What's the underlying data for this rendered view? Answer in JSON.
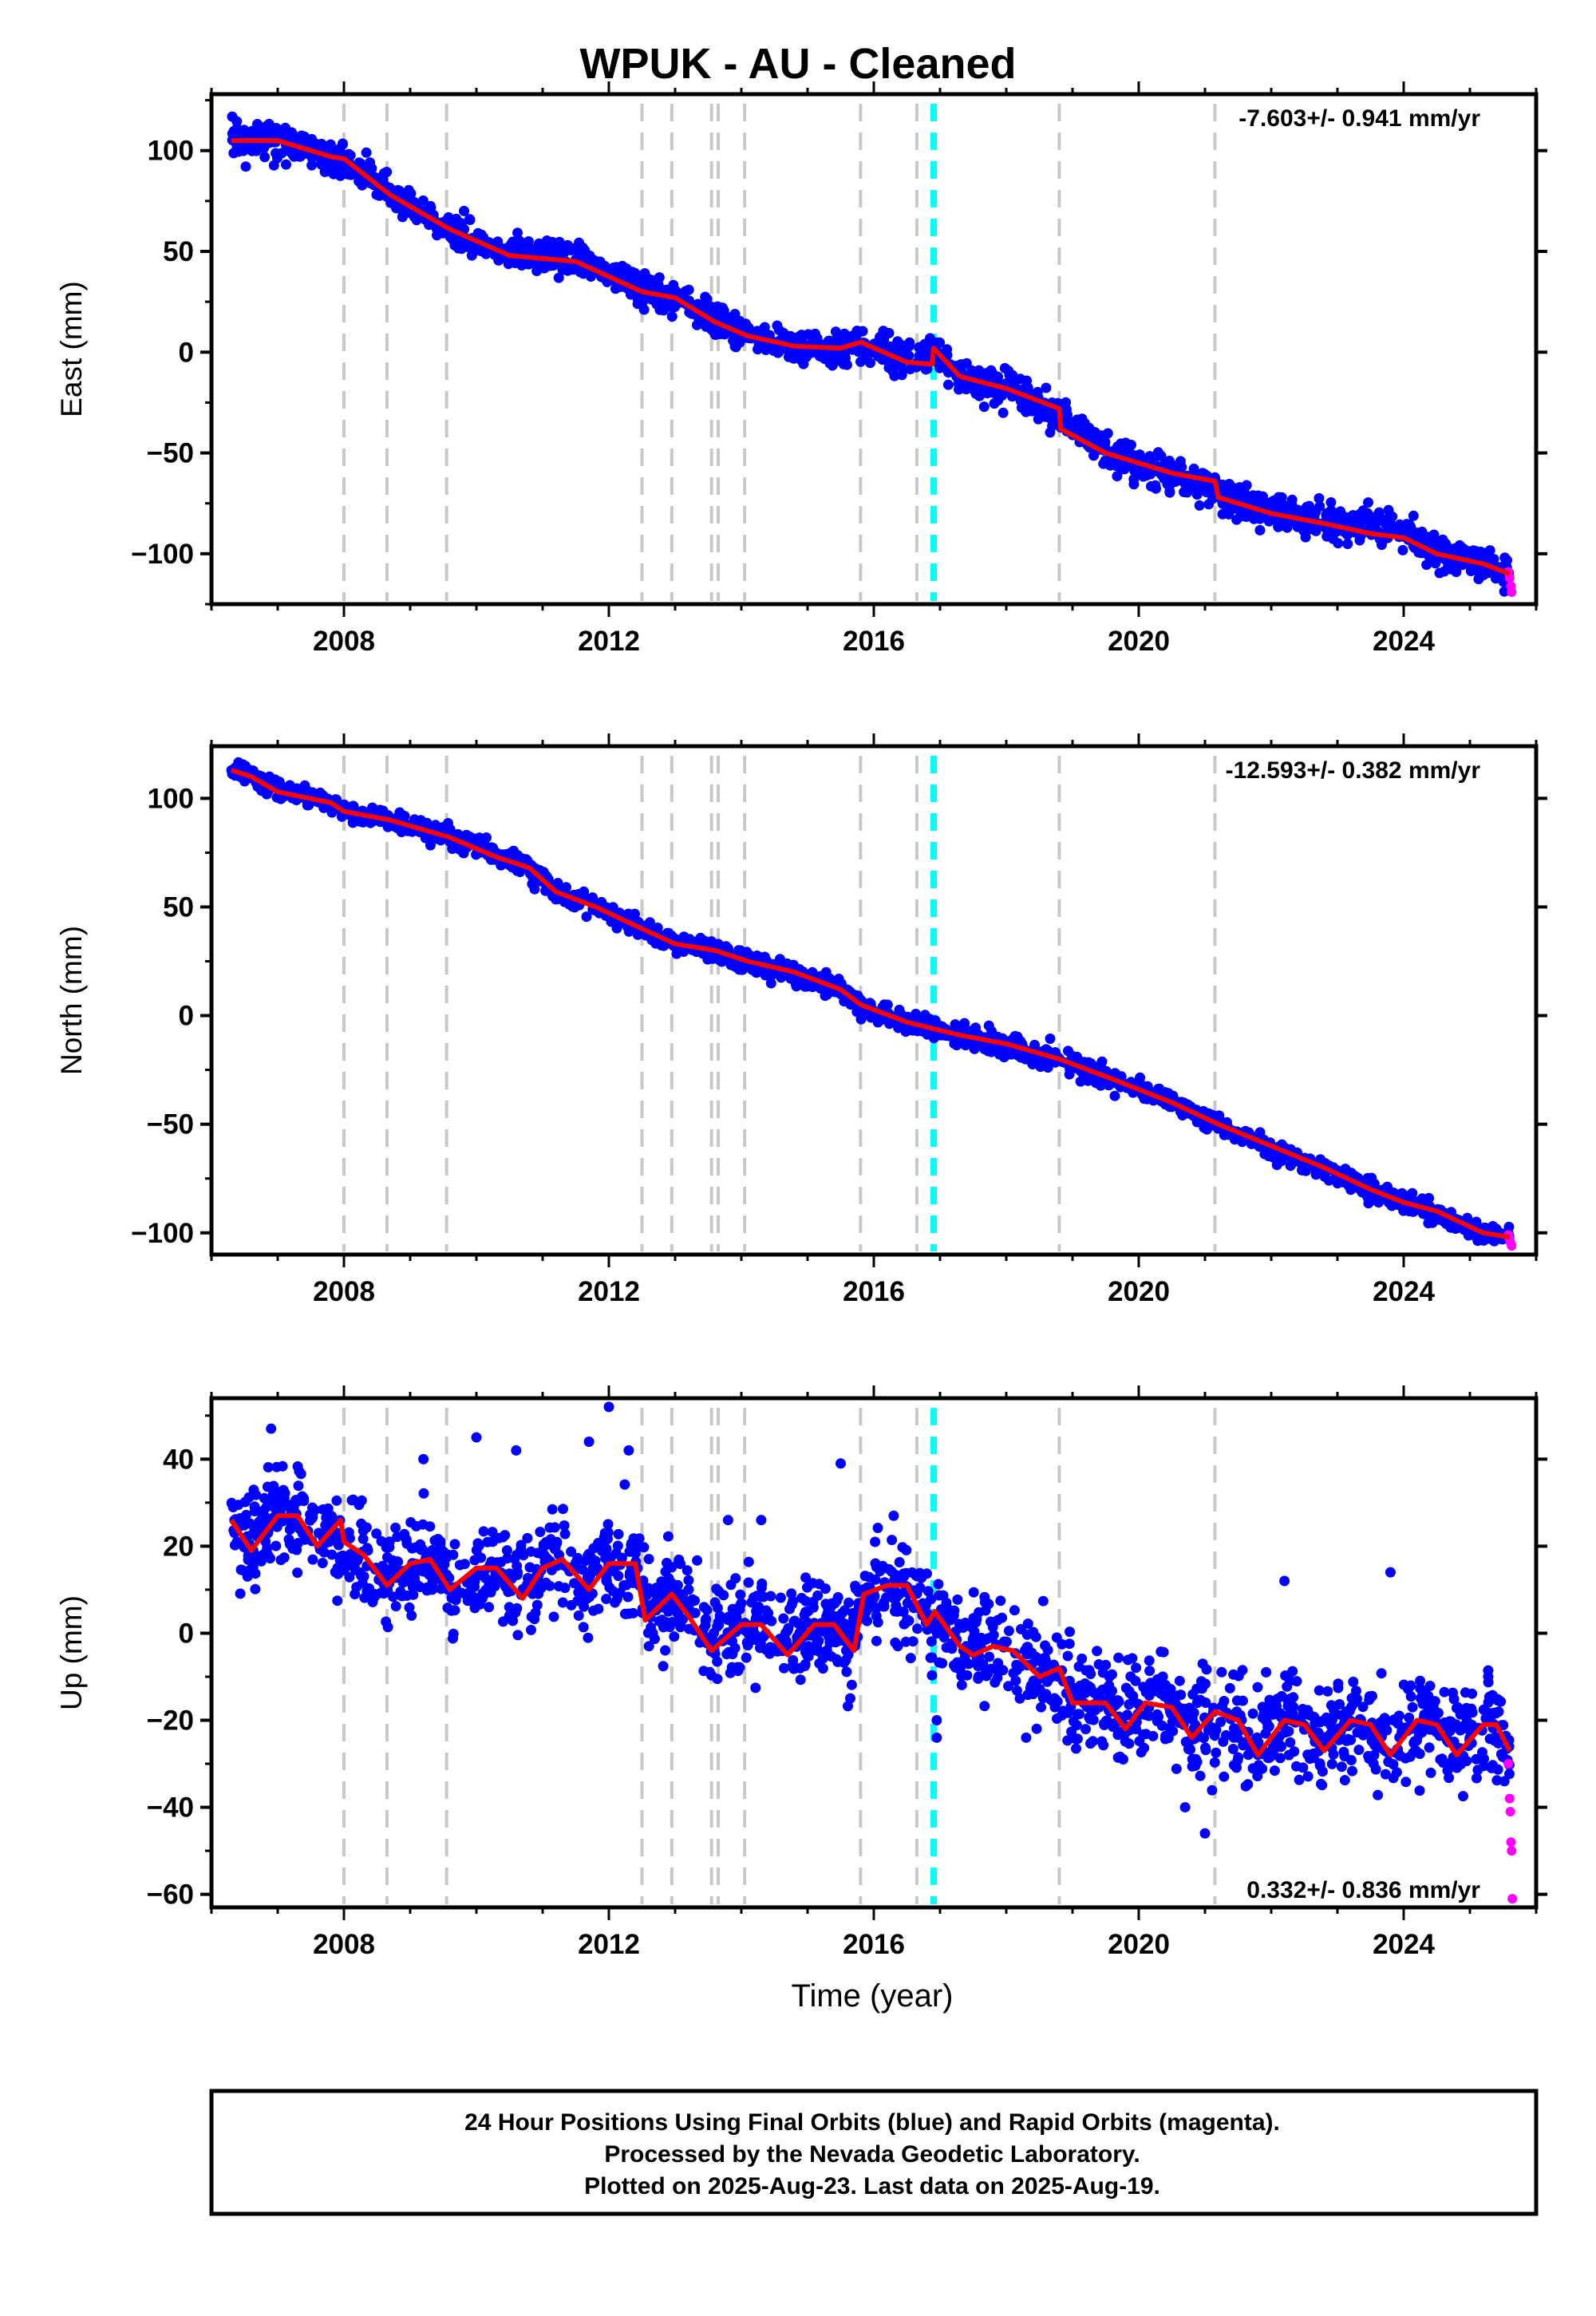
{
  "title": "WPUK  - AU - Cleaned",
  "xlabel": "Time (year)",
  "footer": [
    "24 Hour Positions Using Final Orbits (blue) and Rapid Orbits (magenta).",
    "Processed by the Nevada Geodetic Laboratory.",
    "Plotted on 2025-Aug-23. Last data on 2025-Aug-19."
  ],
  "colors": {
    "final": "#0000ff",
    "rapid": "#ff00ff",
    "model": "#ff0000",
    "steps": "#c8c8c8",
    "equipment": "#00ffff"
  },
  "chart_data": [
    {
      "type": "scatter",
      "ylabel": "East (mm)",
      "rate": "-7.603+/- 0.941 mm/yr",
      "ylim": [
        -125,
        128
      ],
      "yticks": [
        100,
        50,
        0,
        -50,
        -100
      ],
      "ytick_labels": [
        "100",
        "50",
        "0",
        "−50",
        "−100"
      ],
      "xlim": [
        2006.0,
        2026.0
      ],
      "xticks": [
        2008,
        2012,
        2016,
        2020,
        2024
      ],
      "xtick_labels": [
        "2008",
        "2012",
        "2016",
        "2020",
        "2024"
      ],
      "step_lines": [
        2008.0,
        2008.65,
        2009.55,
        2012.5,
        2012.95,
        2013.55,
        2013.65,
        2014.05,
        2015.8,
        2016.65,
        2018.8,
        2021.15
      ],
      "equipment_lines": [
        2016.88,
        2016.93
      ],
      "model_trend": [
        [
          2006.3,
          105
        ],
        [
          2007.0,
          105
        ],
        [
          2007.8,
          97
        ],
        [
          2008.0,
          96
        ],
        [
          2008.7,
          78
        ],
        [
          2009.6,
          61
        ],
        [
          2010.5,
          48
        ],
        [
          2011.5,
          45
        ],
        [
          2012.5,
          30
        ],
        [
          2013.0,
          27
        ],
        [
          2013.6,
          15
        ],
        [
          2014.1,
          8
        ],
        [
          2014.8,
          3
        ],
        [
          2015.5,
          2
        ],
        [
          2015.8,
          5
        ],
        [
          2016.5,
          -5
        ],
        [
          2016.88,
          -6
        ],
        [
          2016.9,
          2
        ],
        [
          2017.3,
          -12
        ],
        [
          2018.0,
          -18
        ],
        [
          2018.8,
          -28
        ],
        [
          2018.82,
          -38
        ],
        [
          2019.5,
          -50
        ],
        [
          2020.5,
          -60
        ],
        [
          2021.15,
          -64
        ],
        [
          2021.2,
          -72
        ],
        [
          2022.0,
          -80
        ],
        [
          2022.8,
          -85
        ],
        [
          2023.5,
          -90
        ],
        [
          2024.0,
          -92
        ],
        [
          2024.5,
          -100
        ],
        [
          2025.2,
          -105
        ],
        [
          2025.6,
          -110
        ]
      ],
      "data_trend": [
        [
          2006.3,
          106
        ],
        [
          2007.0,
          106
        ],
        [
          2007.8,
          96
        ],
        [
          2008.0,
          94
        ],
        [
          2008.7,
          79
        ],
        [
          2009.6,
          60
        ],
        [
          2010.5,
          49
        ],
        [
          2011.5,
          46
        ],
        [
          2012.5,
          31
        ],
        [
          2013.0,
          27
        ],
        [
          2013.6,
          15
        ],
        [
          2014.1,
          7
        ],
        [
          2014.8,
          3
        ],
        [
          2015.5,
          1
        ],
        [
          2015.8,
          5
        ],
        [
          2016.5,
          -4
        ],
        [
          2016.9,
          0
        ],
        [
          2017.3,
          -12
        ],
        [
          2018.0,
          -19
        ],
        [
          2018.8,
          -30
        ],
        [
          2019.5,
          -49
        ],
        [
          2020.5,
          -61
        ],
        [
          2021.2,
          -70
        ],
        [
          2022.0,
          -80
        ],
        [
          2022.8,
          -84
        ],
        [
          2023.5,
          -85
        ],
        [
          2024.0,
          -90
        ],
        [
          2024.5,
          -99
        ],
        [
          2025.2,
          -104
        ],
        [
          2025.6,
          -112
        ]
      ],
      "scatter_sd": 4,
      "rapid_points": [
        [
          2025.58,
          -109
        ],
        [
          2025.6,
          -112
        ],
        [
          2025.62,
          -116
        ],
        [
          2025.63,
          -119
        ]
      ]
    },
    {
      "type": "scatter",
      "ylabel": "North (mm)",
      "rate": "-12.593+/- 0.382 mm/yr",
      "ylim": [
        -110,
        124
      ],
      "yticks": [
        100,
        50,
        0,
        -50,
        -100
      ],
      "ytick_labels": [
        "100",
        "50",
        "0",
        "−50",
        "−100"
      ],
      "xlim": [
        2006.0,
        2026.0
      ],
      "xticks": [
        2008,
        2012,
        2016,
        2020,
        2024
      ],
      "xtick_labels": [
        "2008",
        "2012",
        "2016",
        "2020",
        "2024"
      ],
      "step_lines": [
        2008.0,
        2008.65,
        2009.55,
        2012.5,
        2012.95,
        2013.55,
        2013.65,
        2014.05,
        2015.8,
        2016.65,
        2018.8,
        2021.15
      ],
      "equipment_lines": [
        2016.88,
        2016.93
      ],
      "model_trend": [
        [
          2006.3,
          113
        ],
        [
          2006.6,
          110
        ],
        [
          2007.0,
          103
        ],
        [
          2007.8,
          98
        ],
        [
          2008.0,
          94
        ],
        [
          2008.7,
          90
        ],
        [
          2009.6,
          82
        ],
        [
          2010.3,
          73
        ],
        [
          2010.8,
          68
        ],
        [
          2011.2,
          57
        ],
        [
          2011.8,
          50
        ],
        [
          2012.5,
          40
        ],
        [
          2013.0,
          33
        ],
        [
          2013.6,
          30
        ],
        [
          2014.1,
          25
        ],
        [
          2014.8,
          20
        ],
        [
          2015.5,
          12
        ],
        [
          2015.8,
          5
        ],
        [
          2016.5,
          -3
        ],
        [
          2016.9,
          -6
        ],
        [
          2017.3,
          -9
        ],
        [
          2018.0,
          -13
        ],
        [
          2018.8,
          -20
        ],
        [
          2019.5,
          -28
        ],
        [
          2020.5,
          -40
        ],
        [
          2021.2,
          -50
        ],
        [
          2022.0,
          -60
        ],
        [
          2022.8,
          -70
        ],
        [
          2023.5,
          -80
        ],
        [
          2024.0,
          -86
        ],
        [
          2024.5,
          -90
        ],
        [
          2025.2,
          -100
        ],
        [
          2025.6,
          -102
        ]
      ],
      "data_trend": [
        [
          2006.3,
          114
        ],
        [
          2006.6,
          111
        ],
        [
          2007.0,
          104
        ],
        [
          2007.8,
          98
        ],
        [
          2008.0,
          94
        ],
        [
          2008.7,
          90
        ],
        [
          2009.6,
          83
        ],
        [
          2010.3,
          74
        ],
        [
          2010.8,
          68
        ],
        [
          2011.2,
          56
        ],
        [
          2011.8,
          50
        ],
        [
          2012.5,
          40
        ],
        [
          2013.0,
          33
        ],
        [
          2013.6,
          30
        ],
        [
          2014.1,
          24
        ],
        [
          2014.8,
          19
        ],
        [
          2015.5,
          12
        ],
        [
          2015.8,
          4
        ],
        [
          2016.5,
          -3
        ],
        [
          2016.9,
          -6
        ],
        [
          2017.3,
          -10
        ],
        [
          2018.0,
          -14
        ],
        [
          2018.8,
          -20
        ],
        [
          2019.5,
          -28
        ],
        [
          2020.5,
          -40
        ],
        [
          2021.2,
          -50
        ],
        [
          2022.0,
          -61
        ],
        [
          2022.8,
          -71
        ],
        [
          2023.5,
          -80
        ],
        [
          2024.0,
          -86
        ],
        [
          2024.5,
          -91
        ],
        [
          2025.2,
          -100
        ],
        [
          2025.6,
          -102
        ]
      ],
      "scatter_sd": 2.2,
      "rapid_points": [
        [
          2025.58,
          -101
        ],
        [
          2025.6,
          -103
        ],
        [
          2025.62,
          -105
        ],
        [
          2025.63,
          -106
        ]
      ]
    },
    {
      "type": "scatter",
      "ylabel": "Up (mm)",
      "rate": "0.332+/- 0.836 mm/yr",
      "ylim": [
        -63,
        54
      ],
      "yticks": [
        40,
        20,
        0,
        -20,
        -40,
        -60
      ],
      "ytick_labels": [
        "40",
        "20",
        "0",
        "−20",
        "−40",
        "−60"
      ],
      "xlim": [
        2006.0,
        2026.0
      ],
      "xticks": [
        2008,
        2012,
        2016,
        2020,
        2024
      ],
      "xtick_labels": [
        "2008",
        "2012",
        "2016",
        "2020",
        "2024"
      ],
      "step_lines": [
        2008.0,
        2008.65,
        2009.55,
        2012.5,
        2012.95,
        2013.55,
        2013.65,
        2014.05,
        2015.8,
        2016.65,
        2018.8,
        2021.15
      ],
      "equipment_lines": [
        2016.88,
        2016.93
      ],
      "model_trend": [
        [
          2006.3,
          26
        ],
        [
          2006.6,
          19
        ],
        [
          2007.0,
          27
        ],
        [
          2007.3,
          27
        ],
        [
          2007.6,
          20
        ],
        [
          2007.95,
          26
        ],
        [
          2008.0,
          21
        ],
        [
          2008.3,
          18
        ],
        [
          2008.65,
          11
        ],
        [
          2009.0,
          16
        ],
        [
          2009.3,
          17
        ],
        [
          2009.6,
          10
        ],
        [
          2010.0,
          15
        ],
        [
          2010.3,
          15
        ],
        [
          2010.7,
          8
        ],
        [
          2011.0,
          15
        ],
        [
          2011.3,
          17
        ],
        [
          2011.7,
          10
        ],
        [
          2012.0,
          16
        ],
        [
          2012.4,
          16
        ],
        [
          2012.55,
          3
        ],
        [
          2012.95,
          9
        ],
        [
          2013.2,
          4
        ],
        [
          2013.55,
          -4
        ],
        [
          2014.0,
          2
        ],
        [
          2014.3,
          2
        ],
        [
          2014.7,
          -5
        ],
        [
          2015.1,
          2
        ],
        [
          2015.4,
          2
        ],
        [
          2015.7,
          -4
        ],
        [
          2015.85,
          9
        ],
        [
          2016.2,
          11
        ],
        [
          2016.5,
          11
        ],
        [
          2016.8,
          2
        ],
        [
          2016.92,
          5
        ],
        [
          2017.3,
          -3
        ],
        [
          2017.5,
          -5
        ],
        [
          2017.8,
          -3
        ],
        [
          2018.1,
          -4
        ],
        [
          2018.5,
          -10
        ],
        [
          2018.8,
          -8
        ],
        [
          2019.0,
          -16
        ],
        [
          2019.5,
          -16
        ],
        [
          2019.8,
          -22
        ],
        [
          2020.1,
          -16
        ],
        [
          2020.5,
          -17
        ],
        [
          2020.8,
          -24
        ],
        [
          2021.15,
          -18
        ],
        [
          2021.5,
          -20
        ],
        [
          2021.8,
          -28
        ],
        [
          2022.2,
          -20
        ],
        [
          2022.5,
          -21
        ],
        [
          2022.8,
          -27
        ],
        [
          2023.2,
          -20
        ],
        [
          2023.5,
          -21
        ],
        [
          2023.8,
          -28
        ],
        [
          2024.2,
          -20
        ],
        [
          2024.5,
          -21
        ],
        [
          2024.8,
          -28
        ],
        [
          2025.2,
          -21
        ],
        [
          2025.4,
          -21
        ],
        [
          2025.6,
          -27
        ]
      ],
      "data_trend": [
        [
          2006.3,
          26
        ],
        [
          2006.6,
          20
        ],
        [
          2007.0,
          28
        ],
        [
          2007.3,
          28
        ],
        [
          2007.6,
          21
        ],
        [
          2008.0,
          21
        ],
        [
          2008.3,
          18
        ],
        [
          2008.65,
          12
        ],
        [
          2009.0,
          16
        ],
        [
          2009.3,
          17
        ],
        [
          2009.6,
          11
        ],
        [
          2010.0,
          15
        ],
        [
          2010.3,
          15
        ],
        [
          2010.7,
          9
        ],
        [
          2011.0,
          16
        ],
        [
          2011.3,
          18
        ],
        [
          2011.7,
          11
        ],
        [
          2012.0,
          16
        ],
        [
          2012.4,
          16
        ],
        [
          2012.55,
          4
        ],
        [
          2012.95,
          9
        ],
        [
          2013.2,
          4
        ],
        [
          2013.55,
          -3
        ],
        [
          2014.0,
          2
        ],
        [
          2014.3,
          2
        ],
        [
          2014.7,
          -4
        ],
        [
          2015.1,
          2
        ],
        [
          2015.4,
          2
        ],
        [
          2015.7,
          -3
        ],
        [
          2015.85,
          9
        ],
        [
          2016.2,
          11
        ],
        [
          2016.5,
          11
        ],
        [
          2016.8,
          3
        ],
        [
          2017.3,
          -3
        ],
        [
          2017.5,
          -4
        ],
        [
          2017.8,
          -3
        ],
        [
          2018.1,
          -4
        ],
        [
          2018.5,
          -9
        ],
        [
          2018.8,
          -9
        ],
        [
          2019.0,
          -15
        ],
        [
          2019.5,
          -16
        ],
        [
          2019.8,
          -21
        ],
        [
          2020.1,
          -16
        ],
        [
          2020.5,
          -17
        ],
        [
          2020.8,
          -23
        ],
        [
          2021.2,
          -19
        ],
        [
          2021.5,
          -20
        ],
        [
          2021.8,
          -26
        ],
        [
          2022.2,
          -20
        ],
        [
          2022.5,
          -21
        ],
        [
          2022.8,
          -26
        ],
        [
          2023.2,
          -20
        ],
        [
          2023.5,
          -21
        ],
        [
          2023.8,
          -27
        ],
        [
          2024.2,
          -20
        ],
        [
          2024.5,
          -21
        ],
        [
          2024.8,
          -27
        ],
        [
          2025.2,
          -21
        ],
        [
          2025.4,
          -21
        ],
        [
          2025.6,
          -26
        ]
      ],
      "scatter_sd": 5.5,
      "outliers": [
        [
          2006.9,
          47
        ],
        [
          2009.2,
          40
        ],
        [
          2010.0,
          45
        ],
        [
          2010.6,
          42
        ],
        [
          2011.7,
          44
        ],
        [
          2012.0,
          52
        ],
        [
          2012.3,
          42
        ],
        [
          2013.8,
          26
        ],
        [
          2014.3,
          26
        ],
        [
          2015.5,
          39
        ],
        [
          2016.3,
          27
        ],
        [
          2018.6,
          -14
        ],
        [
          2018.3,
          -24
        ],
        [
          2021.0,
          -46
        ],
        [
          2020.7,
          -40
        ],
        [
          2022.2,
          12
        ],
        [
          2023.8,
          14
        ],
        [
          2016.95,
          -24
        ],
        [
          2016.95,
          -20
        ]
      ],
      "rapid_points": [
        [
          2025.58,
          -30
        ],
        [
          2025.6,
          -38
        ],
        [
          2025.61,
          -41
        ],
        [
          2025.62,
          -48
        ],
        [
          2025.63,
          -50
        ],
        [
          2025.64,
          -61
        ]
      ]
    }
  ]
}
